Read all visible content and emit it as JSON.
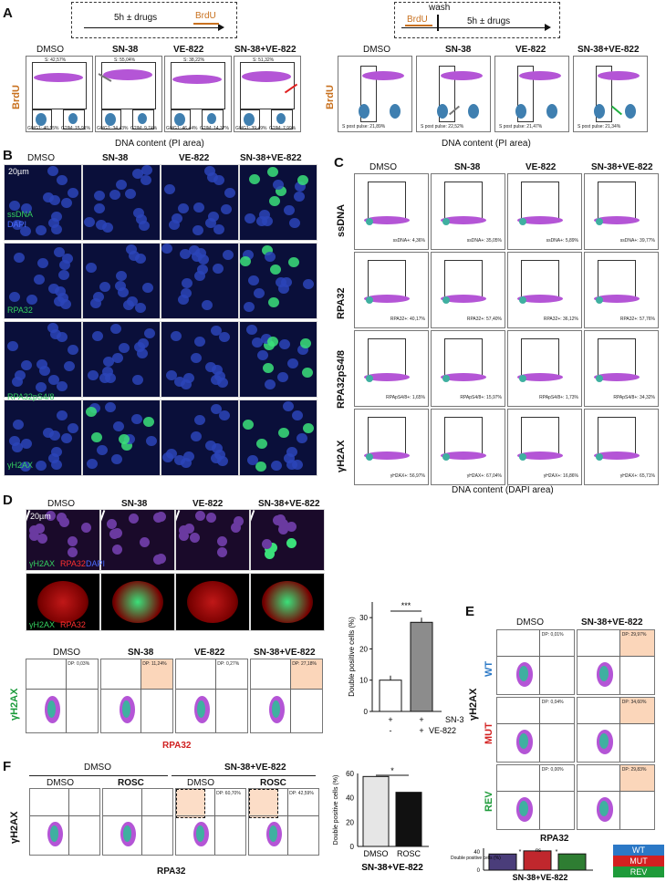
{
  "panels": {
    "A": {
      "letter": "A",
      "protocol_left": {
        "text": "5h ± drugs",
        "brdu": "BrdU"
      },
      "protocol_right": {
        "brdu": "BrdU",
        "wash": "wash",
        "text": "5h ± drugs"
      },
      "y_axis": "BrdU",
      "x_axis": "DNA content (PI area)",
      "conditions": [
        "DMSO",
        "SN-38",
        "VE-822",
        "SN-38+VE-822"
      ],
      "left_stats": [
        {
          "s": "S: 42,57%",
          "g0": "G0/G1: 40,55%",
          "g2": "G2/M: 15,91%"
        },
        {
          "s": "S: 55,04%",
          "g0": "G0/G1: 34,43%",
          "g2": "G2/M: 9,74%"
        },
        {
          "s": "S: 38,22%",
          "g0": "G0/G1: 46,44%",
          "g2": "G2/M: 14,37%"
        },
        {
          "s": "S: 51,32%",
          "g0": "G0/G1: 39,49%",
          "g2": "G2/M: 7,99%"
        }
      ],
      "right_stats": [
        "S post pulse: 21,89%",
        "S post pulse: 22,52%",
        "S post pulse: 21,47%",
        "S post pulse: 21,34%"
      ]
    },
    "B": {
      "letter": "B",
      "conditions": [
        "DMSO",
        "SN-38",
        "VE-822",
        "SN-38+VE-822"
      ],
      "scale": "20µm",
      "rows": [
        {
          "stain": "ssDNA",
          "counter": "DAPI"
        },
        {
          "stain": "RPA32",
          "counter": ""
        },
        {
          "stain": "RPA32pS4/8",
          "counter": ""
        },
        {
          "stain": "γH2AX",
          "counter": ""
        }
      ]
    },
    "C": {
      "letter": "C",
      "conditions": [
        "DMSO",
        "SN-38",
        "VE-822",
        "SN-38+VE-822"
      ],
      "rows": [
        {
          "label": "ssDNA",
          "stats": [
            "ssDNA+: 4,36%",
            "ssDNA+: 35,05%",
            "ssDNA+: 5,89%",
            "ssDNA+: 39,77%"
          ]
        },
        {
          "label": "RPA32",
          "stats": [
            "RPA32+: 40,17%",
            "RPA32+: 57,40%",
            "RPA32+: 36,12%",
            "RPA32+: 57,76%"
          ]
        },
        {
          "label": "RPA32pS4/8",
          "stats": [
            "RPApS4/8+: 1,65%",
            "RPApS4/8+: 15,97%",
            "RPApS4/8+: 1,73%",
            "RPApS4/8+: 34,32%"
          ]
        },
        {
          "label": "γH2AX",
          "stats": [
            "γH2AX+: 56,97%",
            "γH2AX+: 67,04%",
            "γH2AX+: 16,86%",
            "γH2AX+: 65,71%"
          ]
        }
      ],
      "x_axis": "DNA content (DAPI area)"
    },
    "D": {
      "letter": "D",
      "conditions": [
        "DMSO",
        "SN-38",
        "VE-822",
        "SN-38+VE-822"
      ],
      "scale": "20µm",
      "stain_top": {
        "a": "γH2AX",
        "b": "RPA32",
        "c": "DAPI"
      },
      "stain_zoom": {
        "a": "γH2AX",
        "b": "RPA32"
      },
      "dp": [
        "DP: 0,03%",
        "DP: 11,24%",
        "DP: 0,27%",
        "DP: 27,18%"
      ],
      "y_axis": "γH2AX",
      "x_axis": "RPA32",
      "bar": {
        "ylabel": "Double positive cells (%)",
        "ticks": [
          "30",
          "20",
          "10",
          "0"
        ],
        "sig": "***",
        "row1_label": "SN-38",
        "row2_label": "VE-822",
        "row1": [
          "+",
          "+"
        ],
        "row2": [
          "-",
          "+"
        ]
      }
    },
    "E": {
      "letter": "E",
      "conditions": [
        "DMSO",
        "SN-38+VE-822"
      ],
      "rows": [
        {
          "label": "WT",
          "dp": [
            "DP: 0,01%",
            "DP: 29,97%"
          ],
          "color": "#2b78c6"
        },
        {
          "label": "MUT",
          "dp": [
            "DP: 0,04%",
            "DP: 34,60%"
          ],
          "color": "#d32020"
        },
        {
          "label": "REV",
          "dp": [
            "DP: 0,00%",
            "DP: 29,83%"
          ],
          "color": "#1e9b3a"
        }
      ],
      "y_axis": "γH2AX",
      "x_axis": "RPA32",
      "bar": {
        "ylabel": "Double positive cells (%)",
        "ticks": [
          "40",
          "30",
          "20",
          "10",
          "0"
        ],
        "ns": "ns",
        "sig1": "*",
        "sig2": "*",
        "group": "SN-38+VE-822"
      },
      "legend": [
        "WT",
        "MUT",
        "REV"
      ]
    },
    "F": {
      "letter": "F",
      "group_left": "DMSO",
      "group_right": "SN-38+VE-822",
      "conditions": [
        "DMSO",
        "ROSC",
        "DMSO",
        "ROSC"
      ],
      "dp": [
        "",
        "",
        "DP: 60,70%",
        "DP: 42,59%"
      ],
      "y_axis": "γH2AX",
      "x_axis": "RPA32",
      "bar": {
        "ylabel": "Double positive cells (%)",
        "ticks": [
          "60",
          "40",
          "20",
          "0"
        ],
        "sig": "*",
        "cats": [
          "DMSO",
          "ROSC"
        ],
        "group": "SN-38+VE-822"
      }
    }
  },
  "chart_data": [
    {
      "type": "bar",
      "title": "",
      "ylabel": "Double positive cells (%)",
      "categories": [
        "SN-38 + / VE-822 -",
        "SN-38 + / VE-822 +"
      ],
      "values": [
        10,
        28.5
      ],
      "ylim": [
        0,
        35
      ],
      "colors": [
        "#ffffff",
        "#8c8c8c"
      ]
    },
    {
      "type": "bar",
      "title": "",
      "ylabel": "Double positive cells (%)",
      "xlabel": "SN-38+VE-822",
      "categories": [
        "WT",
        "MUT",
        "REV"
      ],
      "values": [
        29.5,
        35.2,
        29.7
      ],
      "ylim": [
        0,
        40
      ],
      "colors": [
        "#4a3d7a",
        "#c0272d",
        "#2e7d32"
      ]
    },
    {
      "type": "bar",
      "title": "",
      "ylabel": "Double positive cells (%)",
      "xlabel": "SN-38+VE-822",
      "categories": [
        "DMSO",
        "ROSC"
      ],
      "values": [
        57.5,
        44.5
      ],
      "ylim": [
        0,
        60
      ],
      "colors": [
        "#e6e6e6",
        "#111111"
      ]
    }
  ]
}
